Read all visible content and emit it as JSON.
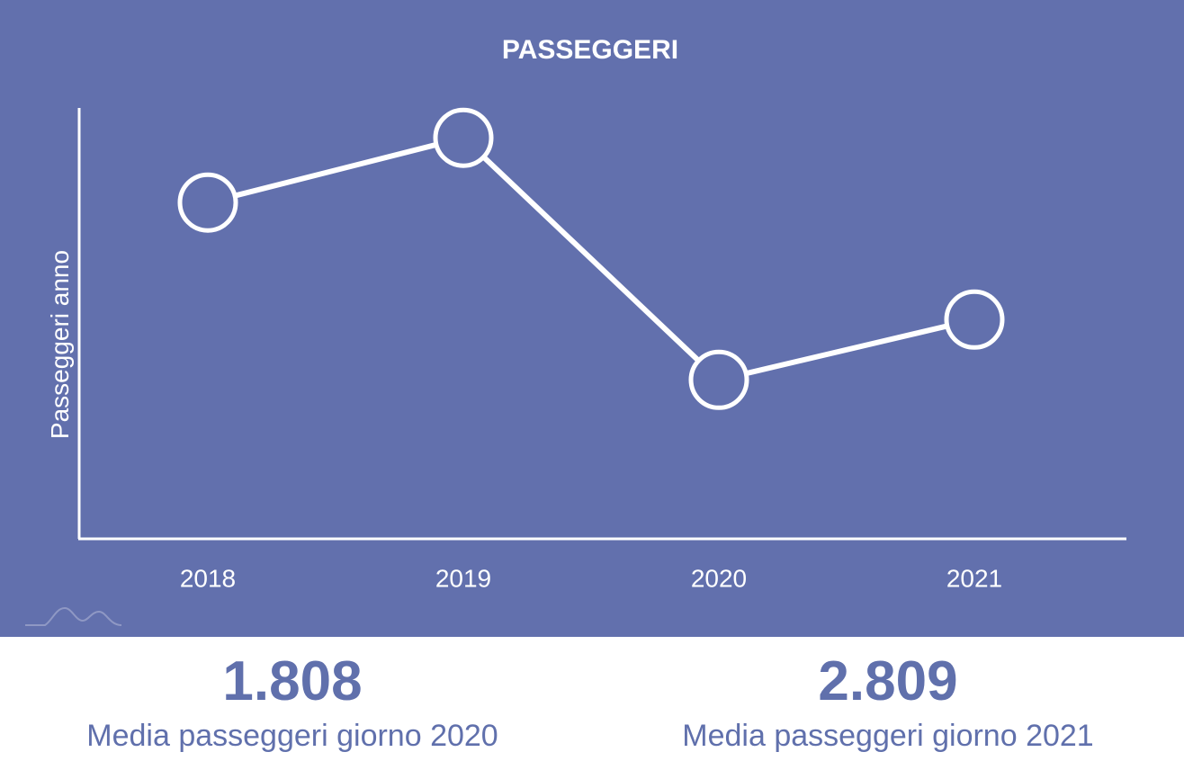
{
  "chart_data": {
    "type": "line",
    "title": "PASSEGGERI",
    "y_label": "Passeggeri anno",
    "categories": [
      "2018",
      "2019",
      "2020",
      "2021"
    ],
    "values": [
      1730000,
      2120000,
      662000,
      1025000
    ],
    "color": "#ffffff",
    "background": "#6270ad",
    "ylim": [
      -290000,
      2300000
    ]
  },
  "stats": [
    {
      "value": "1.808",
      "label": "Media passeggeri giorno 2020"
    },
    {
      "value": "2.809",
      "label": "Media passeggeri giorno 2021"
    }
  ]
}
